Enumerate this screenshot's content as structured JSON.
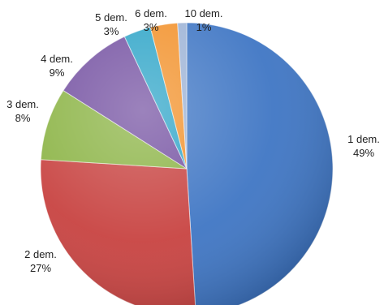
{
  "chart_data": {
    "type": "pie",
    "title": "",
    "legend": "none",
    "slices": [
      {
        "name": "1 dem.",
        "value": 49,
        "pct_label": "49%",
        "color": "#3f76c4"
      },
      {
        "name": "2 dem.",
        "value": 27,
        "pct_label": "27%",
        "color": "#c84341"
      },
      {
        "name": "3 dem.",
        "value": 8,
        "pct_label": "8%",
        "color": "#8cb446"
      },
      {
        "name": "4 dem.",
        "value": 9,
        "pct_label": "9%",
        "color": "#7552a2"
      },
      {
        "name": "5 dem.",
        "value": 3,
        "pct_label": "3%",
        "color": "#2fa5c8"
      },
      {
        "name": "6 dem.",
        "value": 3,
        "pct_label": "3%",
        "color": "#f2922c"
      },
      {
        "name": "10 dem.",
        "value": 1,
        "pct_label": "1%",
        "color": "#9db3d6"
      }
    ]
  }
}
